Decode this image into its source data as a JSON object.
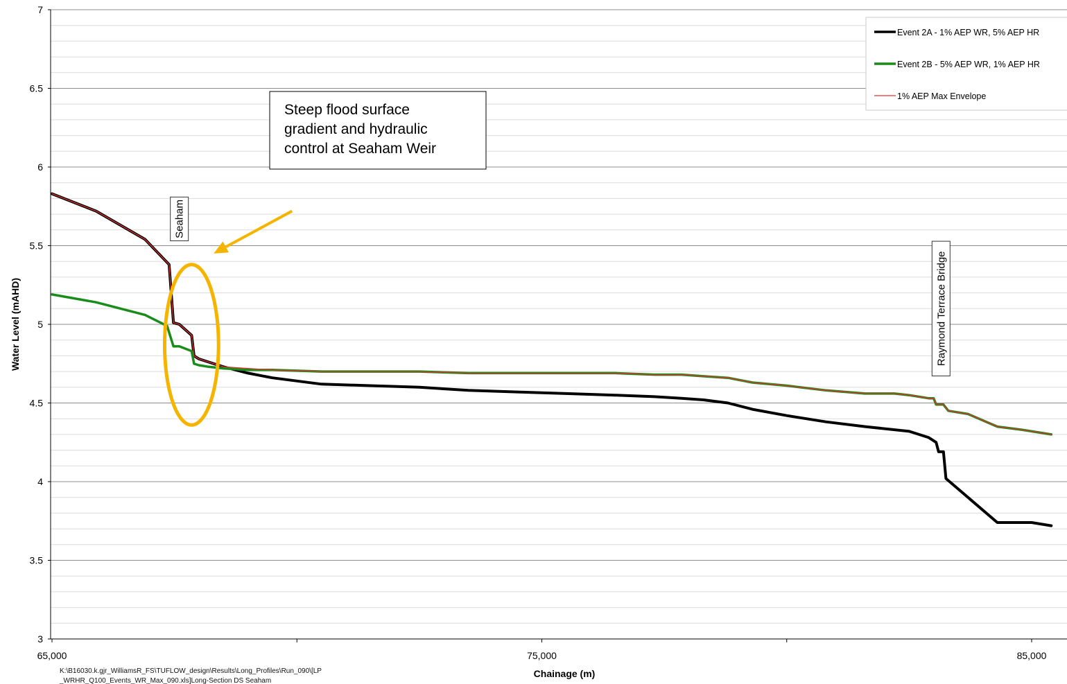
{
  "chart_data": {
    "type": "line",
    "xlabel": "Chainage (m)",
    "ylabel": "Water Level (mAHD)",
    "xlim": [
      65000,
      86000
    ],
    "ylim": [
      3,
      7
    ],
    "x_ticks": [
      65000,
      75000,
      85000
    ],
    "x_tick_labels": [
      "65,000",
      "75,000",
      "85,000"
    ],
    "y_ticks": [
      3,
      3.5,
      4,
      4.5,
      5,
      5.5,
      6,
      6.5,
      7
    ],
    "y_tick_labels": [
      "3",
      "3.5",
      "4",
      "4.5",
      "5",
      "5.5",
      "6",
      "6.5",
      "7"
    ],
    "grid": "horizontal",
    "legend_position": "top-right",
    "series": [
      {
        "name": "Event 2A - 1% AEP WR, 5% AEP HR",
        "color": "#000000",
        "x": [
          65000,
          65900,
          66900,
          67390,
          67480,
          67600,
          67850,
          67900,
          68000,
          68200,
          68500,
          69000,
          69500,
          70500,
          71500,
          72500,
          73500,
          74500,
          75500,
          76500,
          77300,
          77850,
          78300,
          78800,
          79300,
          80000,
          80800,
          81600,
          82200,
          82500,
          82900,
          83050,
          83100,
          83200,
          83250,
          84300,
          84500,
          85000,
          85400
        ],
        "y": [
          5.83,
          5.72,
          5.54,
          5.38,
          5.01,
          5.0,
          4.93,
          4.8,
          4.78,
          4.76,
          4.73,
          4.69,
          4.66,
          4.62,
          4.61,
          4.6,
          4.58,
          4.57,
          4.56,
          4.55,
          4.54,
          4.53,
          4.52,
          4.5,
          4.46,
          4.42,
          4.38,
          4.35,
          4.33,
          4.32,
          4.28,
          4.25,
          4.19,
          4.19,
          4.02,
          3.74,
          3.74,
          3.74,
          3.72
        ]
      },
      {
        "name": "Event 2B - 5% AEP WR, 1% AEP HR",
        "color": "#1a8c1a",
        "x": [
          65000,
          65900,
          66900,
          67350,
          67480,
          67600,
          67850,
          67900,
          68000,
          68200,
          68500,
          69000,
          69500,
          70500,
          71500,
          72500,
          73500,
          74500,
          75500,
          76500,
          77300,
          77850,
          78300,
          78800,
          79300,
          80000,
          80800,
          81600,
          82200,
          82500,
          82900,
          83000,
          83050,
          83200,
          83300,
          83700,
          84300,
          84800,
          85400
        ],
        "y": [
          5.19,
          5.14,
          5.06,
          4.99,
          4.86,
          4.86,
          4.83,
          4.75,
          4.74,
          4.73,
          4.72,
          4.71,
          4.71,
          4.7,
          4.7,
          4.7,
          4.69,
          4.69,
          4.69,
          4.69,
          4.68,
          4.68,
          4.67,
          4.66,
          4.63,
          4.61,
          4.58,
          4.56,
          4.56,
          4.55,
          4.53,
          4.53,
          4.49,
          4.49,
          4.45,
          4.43,
          4.35,
          4.33,
          4.3
        ]
      },
      {
        "name": "1% AEP Max Envelope",
        "color": "#e03030",
        "x": [
          65000,
          65900,
          66900,
          67390,
          67480,
          67600,
          67850,
          67900,
          68000,
          68200,
          68500,
          69000,
          69500,
          70500,
          71500,
          72500,
          73500,
          74500,
          75500,
          76500,
          77300,
          77850,
          78300,
          78800,
          79300,
          80000,
          80800,
          81600,
          82200,
          82500,
          82900,
          83000,
          83050,
          83200,
          83300,
          83700,
          84300,
          84800,
          85400
        ],
        "y": [
          5.83,
          5.72,
          5.54,
          5.38,
          5.01,
          5.0,
          4.93,
          4.8,
          4.78,
          4.76,
          4.73,
          4.72,
          4.71,
          4.7,
          4.7,
          4.7,
          4.69,
          4.69,
          4.69,
          4.69,
          4.68,
          4.68,
          4.67,
          4.66,
          4.63,
          4.61,
          4.58,
          4.56,
          4.56,
          4.55,
          4.53,
          4.53,
          4.49,
          4.49,
          4.45,
          4.43,
          4.35,
          4.33,
          4.3
        ]
      }
    ],
    "markers": [
      {
        "label": "Seaham",
        "x": 67600,
        "y": 5.67
      },
      {
        "label": "Raymond Terrace Bridge",
        "x": 83150,
        "y": 5.1
      }
    ],
    "annotation": {
      "lines": [
        "Steep flood surface",
        "gradient and hydraulic",
        "control at Seaham Weir"
      ],
      "highlight_color": "#f5b400",
      "ellipse_center": [
        67850,
        4.87
      ],
      "ellipse_radii": [
        550,
        0.51
      ],
      "arrow_from": [
        69900,
        5.72
      ],
      "arrow_to": [
        68300,
        5.45
      ]
    },
    "footer": {
      "line1": "K:\\B16030.k.gjr_WilliamsR_FS\\TUFLOW_design\\Results\\Long_Profiles\\Run_090\\[LP",
      "line2": "_WRHR_Q100_Events_WR_Max_090.xls]Long-Section DS Seaham"
    }
  }
}
